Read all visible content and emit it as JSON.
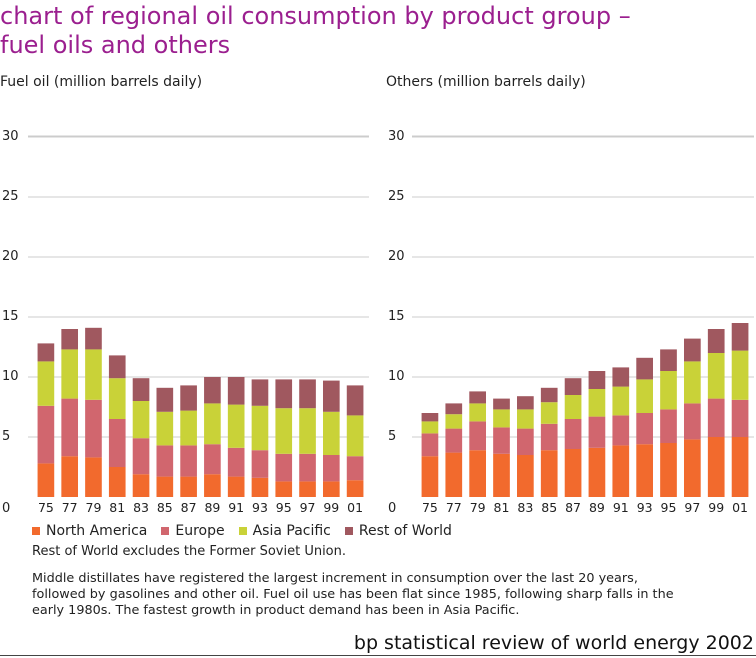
{
  "header": {
    "title_line1": "chart of regional oil consumption by product group –",
    "title_line2": "fuel oils and others"
  },
  "colors": {
    "north_america": "#f26a2d",
    "europe": "#d1666e",
    "asia_pacific": "#c9d238",
    "rest_of_world": "#a0585f",
    "title": "#9b1f8f",
    "grid": "#cccccc"
  },
  "chart_data": [
    {
      "type": "bar",
      "stacked": true,
      "title": "Fuel oil (million barrels daily)",
      "categories": [
        "75",
        "77",
        "79",
        "81",
        "83",
        "85",
        "87",
        "89",
        "91",
        "93",
        "95",
        "97",
        "99",
        "01"
      ],
      "yticks": [
        0,
        5,
        10,
        15,
        20,
        25,
        30
      ],
      "ylim": [
        0,
        30
      ],
      "series": [
        {
          "name": "North America",
          "values": [
            2.8,
            3.4,
            3.3,
            2.5,
            1.9,
            1.7,
            1.7,
            1.9,
            1.7,
            1.6,
            1.3,
            1.3,
            1.3,
            1.4
          ]
        },
        {
          "name": "Europe",
          "values": [
            4.8,
            4.8,
            4.8,
            4.0,
            3.0,
            2.6,
            2.6,
            2.5,
            2.4,
            2.3,
            2.3,
            2.3,
            2.2,
            2.0
          ]
        },
        {
          "name": "Asia Pacific",
          "values": [
            3.7,
            4.1,
            4.2,
            3.4,
            3.1,
            2.8,
            2.9,
            3.4,
            3.6,
            3.7,
            3.8,
            3.8,
            3.6,
            3.4
          ]
        },
        {
          "name": "Rest of World",
          "values": [
            1.5,
            1.7,
            1.8,
            1.9,
            1.9,
            2.0,
            2.1,
            2.2,
            2.3,
            2.2,
            2.4,
            2.4,
            2.6,
            2.5
          ]
        }
      ]
    },
    {
      "type": "bar",
      "stacked": true,
      "title": "Others (million barrels daily)",
      "categories": [
        "75",
        "77",
        "79",
        "81",
        "83",
        "85",
        "87",
        "89",
        "91",
        "93",
        "95",
        "97",
        "99",
        "01"
      ],
      "yticks": [
        0,
        5,
        10,
        15,
        20,
        25,
        30
      ],
      "ylim": [
        0,
        30
      ],
      "series": [
        {
          "name": "North America",
          "values": [
            3.4,
            3.7,
            3.9,
            3.6,
            3.5,
            3.9,
            4.0,
            4.1,
            4.3,
            4.4,
            4.5,
            4.8,
            5.0,
            5.0
          ]
        },
        {
          "name": "Europe",
          "values": [
            1.9,
            2.0,
            2.4,
            2.2,
            2.2,
            2.2,
            2.5,
            2.6,
            2.5,
            2.6,
            2.8,
            3.0,
            3.2,
            3.1
          ]
        },
        {
          "name": "Asia Pacific",
          "values": [
            1.0,
            1.2,
            1.5,
            1.5,
            1.6,
            1.8,
            2.0,
            2.3,
            2.4,
            2.8,
            3.2,
            3.5,
            3.8,
            4.1
          ]
        },
        {
          "name": "Rest of World",
          "values": [
            0.7,
            0.9,
            1.0,
            0.9,
            1.1,
            1.2,
            1.4,
            1.5,
            1.6,
            1.8,
            1.8,
            1.9,
            2.0,
            2.3
          ]
        }
      ]
    }
  ],
  "legend": {
    "items": [
      {
        "label": "North America",
        "color": "#f26a2d"
      },
      {
        "label": "Europe",
        "color": "#d1666e"
      },
      {
        "label": "Asia Pacific",
        "color": "#c9d238"
      },
      {
        "label": "Rest of World",
        "color": "#a0585f"
      }
    ]
  },
  "note": "Rest of World excludes the Former Soviet Union.",
  "paragraph": {
    "line1": "Middle distillates have registered the largest increment in consumption over the last 20 years,",
    "line2": "followed by gasolines and other oil. Fuel oil use has been flat since 1985, following sharp falls in the",
    "line3": "early 1980s. The fastest growth in product demand has been in Asia Pacific."
  },
  "footer": {
    "source": "bp statistical review of world energy 2002"
  }
}
